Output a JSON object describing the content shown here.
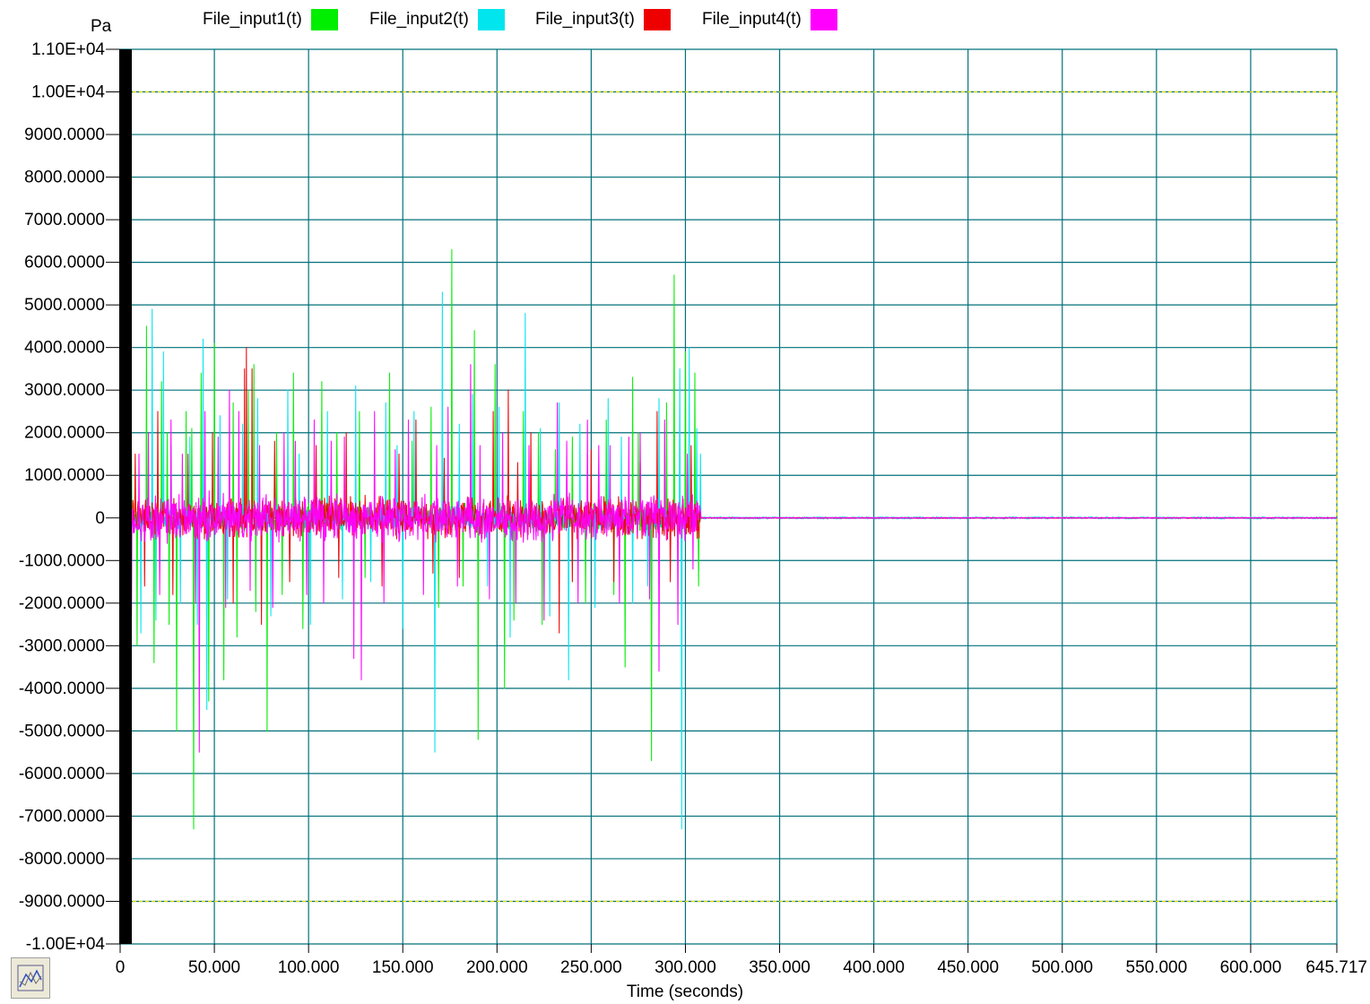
{
  "chart_data": {
    "type": "line",
    "title": "",
    "xlabel": "Time (seconds)",
    "ylabel": "Pa",
    "xlim": [
      0,
      645.717
    ],
    "ylim": [
      -10000,
      11000
    ],
    "x_ticks": [
      "0",
      "50.000",
      "100.000",
      "150.000",
      "200.000",
      "250.000",
      "300.000",
      "350.000",
      "400.000",
      "450.000",
      "500.000",
      "550.000",
      "600.000",
      "645.717"
    ],
    "y_ticks": [
      "1.10E+04",
      "1.00E+04",
      "9000.0000",
      "8000.0000",
      "7000.0000",
      "6000.0000",
      "5000.0000",
      "4000.0000",
      "3000.0000",
      "2000.0000",
      "1000.0000",
      "0",
      "-1000.0000",
      "-2000.0000",
      "-3000.0000",
      "-4000.0000",
      "-5000.0000",
      "-6000.0000",
      "-7000.0000",
      "-8000.0000",
      "-9000.0000",
      "-1.00E+04"
    ],
    "grid": true,
    "legend_position": "top",
    "limit_lines": [
      10000,
      -9000
    ],
    "series": [
      {
        "name": "File_input1(t)",
        "color": "#00ee00",
        "noise_amplitude": 350,
        "active_until": 308,
        "peaks": [
          [
            6,
            1500
          ],
          [
            9,
            -3000
          ],
          [
            14,
            4500
          ],
          [
            18,
            -3400
          ],
          [
            22,
            3200
          ],
          [
            25,
            2000
          ],
          [
            26,
            -2500
          ],
          [
            30,
            -5000
          ],
          [
            35,
            2500
          ],
          [
            38,
            2100
          ],
          [
            39,
            -7300
          ],
          [
            43,
            3400
          ],
          [
            47,
            -4300
          ],
          [
            50,
            4100
          ],
          [
            55,
            -3800
          ],
          [
            60,
            2700
          ],
          [
            62,
            -2800
          ],
          [
            68,
            3000
          ],
          [
            71,
            3600
          ],
          [
            72,
            -2200
          ],
          [
            78,
            -5000
          ],
          [
            83,
            2000
          ],
          [
            86,
            -1800
          ],
          [
            92,
            3400
          ],
          [
            97,
            -2600
          ],
          [
            107,
            3200
          ],
          [
            115,
            2000
          ],
          [
            127,
            2500
          ],
          [
            130,
            -1400
          ],
          [
            143,
            3400
          ],
          [
            155,
            1800
          ],
          [
            165,
            2600
          ],
          [
            169,
            -2100
          ],
          [
            176,
            6300
          ],
          [
            182,
            -1600
          ],
          [
            188,
            4400
          ],
          [
            190,
            -5200
          ],
          [
            199,
            3600
          ],
          [
            204,
            -4000
          ],
          [
            209,
            -2400
          ],
          [
            214,
            2500
          ],
          [
            222,
            2000
          ],
          [
            224,
            -2500
          ],
          [
            231,
            1600
          ],
          [
            240,
            1900
          ],
          [
            247,
            -2000
          ],
          [
            258,
            2300
          ],
          [
            262,
            -1800
          ],
          [
            268,
            -3500
          ],
          [
            272,
            3300
          ],
          [
            275,
            2000
          ],
          [
            282,
            -5700
          ],
          [
            290,
            2700
          ],
          [
            294,
            5700
          ],
          [
            300,
            3900
          ],
          [
            305,
            3400
          ],
          [
            307,
            -1600
          ]
        ]
      },
      {
        "name": "File_input2(t)",
        "color": "#00e5ee",
        "noise_amplitude": 300,
        "active_until": 308,
        "tail_noise": 25,
        "peaks": [
          [
            5,
            1200
          ],
          [
            11,
            -2700
          ],
          [
            17,
            4900
          ],
          [
            19,
            -2400
          ],
          [
            23,
            3900
          ],
          [
            27,
            1700
          ],
          [
            32,
            -2000
          ],
          [
            37,
            1900
          ],
          [
            41,
            -2500
          ],
          [
            44,
            4200
          ],
          [
            46,
            -4500
          ],
          [
            53,
            2400
          ],
          [
            57,
            -1900
          ],
          [
            65,
            2200
          ],
          [
            73,
            2800
          ],
          [
            80,
            -2300
          ],
          [
            89,
            3000
          ],
          [
            95,
            1500
          ],
          [
            101,
            -2500
          ],
          [
            110,
            2500
          ],
          [
            118,
            -1900
          ],
          [
            125,
            3100
          ],
          [
            133,
            -1500
          ],
          [
            141,
            2700
          ],
          [
            147,
            1700
          ],
          [
            150,
            -2600
          ],
          [
            156,
            2500
          ],
          [
            167,
            -5500
          ],
          [
            171,
            5300
          ],
          [
            180,
            2200
          ],
          [
            187,
            2900
          ],
          [
            195,
            -1600
          ],
          [
            201,
            2600
          ],
          [
            207,
            -2800
          ],
          [
            215,
            4800
          ],
          [
            223,
            2100
          ],
          [
            228,
            -2300
          ],
          [
            233,
            2700
          ],
          [
            238,
            -3800
          ],
          [
            244,
            2200
          ],
          [
            252,
            -2100
          ],
          [
            259,
            2800
          ],
          [
            266,
            1900
          ],
          [
            272,
            -2000
          ],
          [
            280,
            -1600
          ],
          [
            286,
            2800
          ],
          [
            297,
            3500
          ],
          [
            298,
            -7300
          ],
          [
            302,
            4000
          ],
          [
            306,
            2100
          ],
          [
            308,
            1500
          ]
        ]
      },
      {
        "name": "File_input3(t)",
        "color": "#ee0000",
        "noise_amplitude": 550,
        "active_until": 308,
        "peaks": [
          [
            3,
            3400
          ],
          [
            5,
            -3800
          ],
          [
            8,
            1500
          ],
          [
            13,
            -1600
          ],
          [
            20,
            2500
          ],
          [
            28,
            -1800
          ],
          [
            36,
            1500
          ],
          [
            49,
            2000
          ],
          [
            60,
            -2000
          ],
          [
            66,
            3500
          ],
          [
            67,
            4000
          ],
          [
            70,
            3500
          ],
          [
            75,
            -2500
          ],
          [
            82,
            1800
          ],
          [
            90,
            -1500
          ],
          [
            104,
            1700
          ],
          [
            116,
            -1400
          ],
          [
            120,
            2000
          ],
          [
            139,
            -1600
          ],
          [
            148,
            1500
          ],
          [
            157,
            2300
          ],
          [
            166,
            -1300
          ],
          [
            172,
            1400
          ],
          [
            180,
            -1400
          ],
          [
            198,
            2500
          ],
          [
            206,
            3000
          ],
          [
            211,
            1300
          ],
          [
            218,
            2000
          ],
          [
            233,
            -2700
          ],
          [
            240,
            -1500
          ],
          [
            250,
            1600
          ],
          [
            262,
            -1500
          ],
          [
            276,
            1300
          ],
          [
            285,
            2500
          ],
          [
            292,
            -1500
          ],
          [
            303,
            1700
          ]
        ]
      },
      {
        "name": "File_input4(t)",
        "color": "#ff00ff",
        "noise_amplitude": 650,
        "active_until": 308,
        "peaks": [
          [
            2,
            1000
          ],
          [
            4,
            2600
          ],
          [
            6,
            -2300
          ],
          [
            10,
            1500
          ],
          [
            15,
            2000
          ],
          [
            21,
            -1800
          ],
          [
            27,
            2300
          ],
          [
            33,
            1500
          ],
          [
            40,
            -2000
          ],
          [
            42,
            -5500
          ],
          [
            45,
            2500
          ],
          [
            52,
            1900
          ],
          [
            56,
            -2100
          ],
          [
            58,
            3000
          ],
          [
            63,
            2500
          ],
          [
            69,
            -1700
          ],
          [
            74,
            1700
          ],
          [
            81,
            -2100
          ],
          [
            87,
            2000
          ],
          [
            93,
            1800
          ],
          [
            99,
            -1800
          ],
          [
            103,
            2300
          ],
          [
            108,
            -2000
          ],
          [
            112,
            1800
          ],
          [
            119,
            1900
          ],
          [
            124,
            -3300
          ],
          [
            128,
            -3800
          ],
          [
            135,
            2500
          ],
          [
            140,
            -2000
          ],
          [
            146,
            1600
          ],
          [
            153,
            2300
          ],
          [
            161,
            -1800
          ],
          [
            168,
            1700
          ],
          [
            174,
            2600
          ],
          [
            179,
            -1600
          ],
          [
            186,
            3600
          ],
          [
            191,
            1700
          ],
          [
            196,
            -1900
          ],
          [
            203,
            2000
          ],
          [
            210,
            -2000
          ],
          [
            217,
            1700
          ],
          [
            225,
            -2400
          ],
          [
            232,
            2700
          ],
          [
            237,
            1800
          ],
          [
            243,
            -2000
          ],
          [
            248,
            2300
          ],
          [
            254,
            1700
          ],
          [
            260,
            1700
          ],
          [
            265,
            -2000
          ],
          [
            270,
            1900
          ],
          [
            276,
            2000
          ],
          [
            281,
            -1900
          ],
          [
            286,
            -3600
          ],
          [
            289,
            2300
          ],
          [
            296,
            -2500
          ],
          [
            301,
            1500
          ],
          [
            304,
            -1200
          ]
        ]
      }
    ]
  }
}
